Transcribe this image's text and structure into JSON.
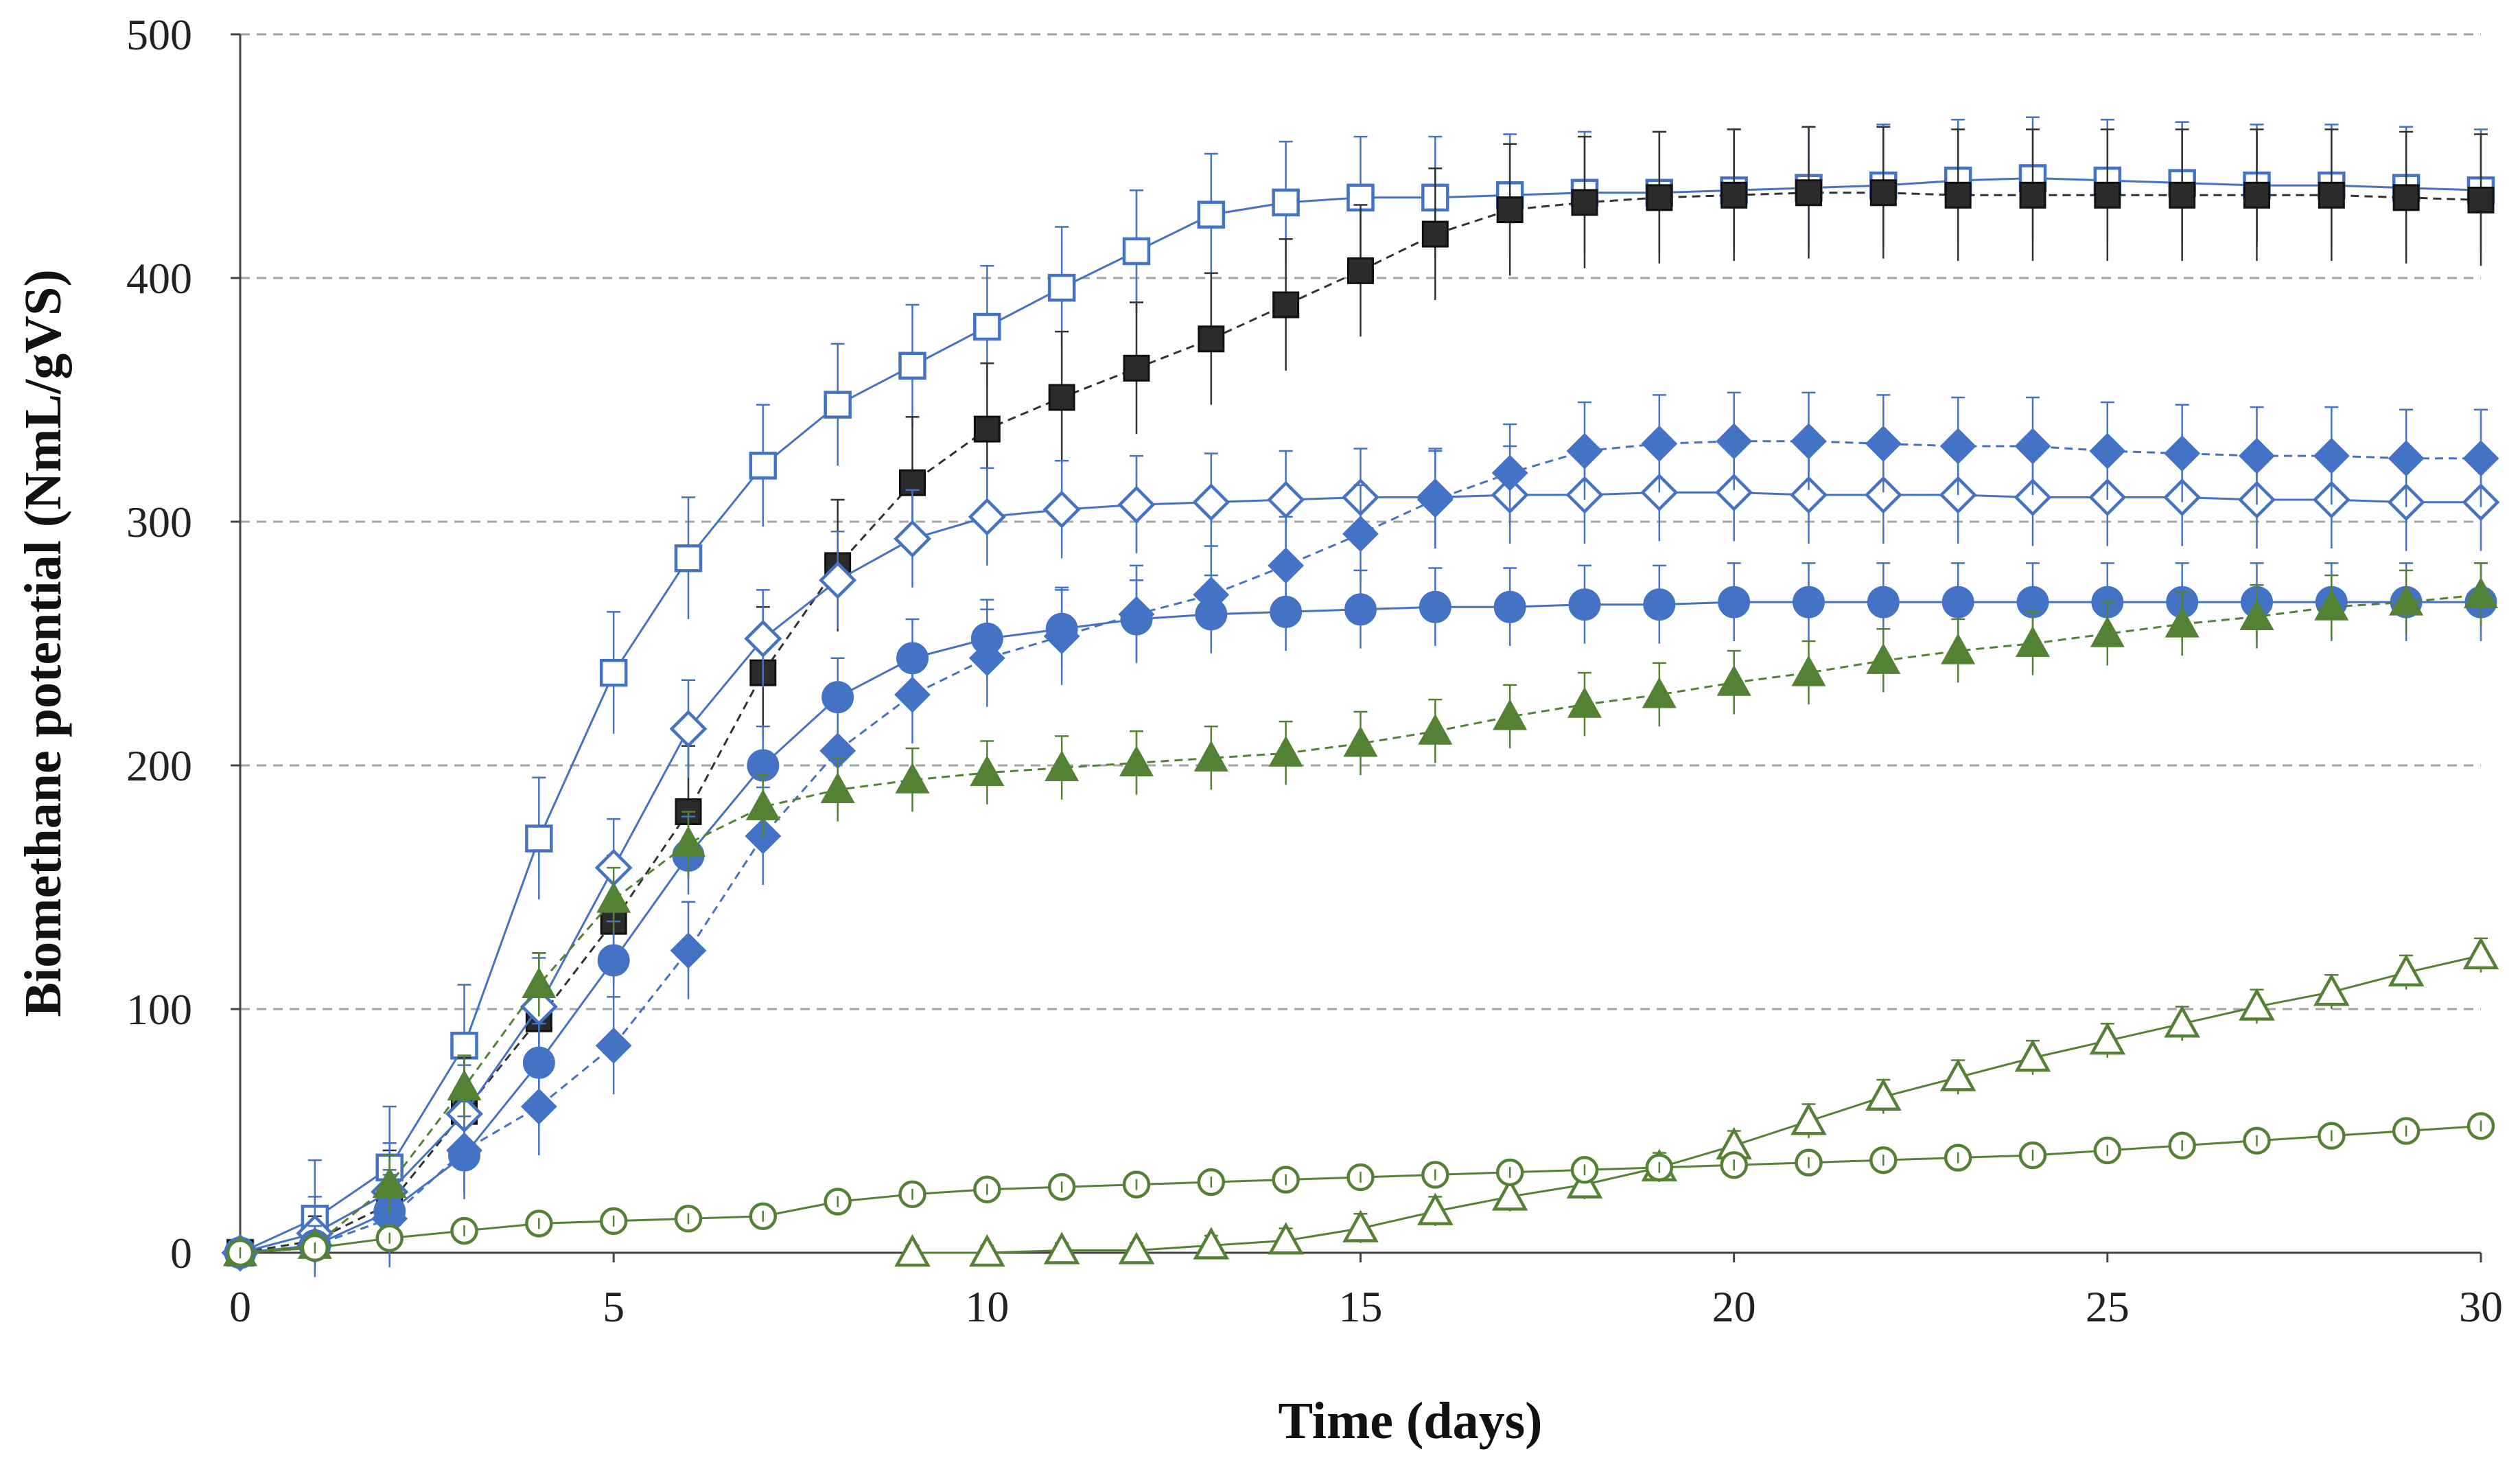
{
  "chart_data": {
    "type": "line",
    "title": "",
    "xlabel": "Time  (days)",
    "ylabel": "Biomethane potential  (NmL/gVS)",
    "xlim": [
      0,
      30
    ],
    "ylim": [
      0,
      500
    ],
    "xticks": [
      "0",
      "5",
      "10",
      "15",
      "20",
      "25",
      "30"
    ],
    "yticks": [
      "0",
      "100",
      "200",
      "300",
      "400",
      "500"
    ],
    "grid": "horizontal dashed",
    "legend": "none",
    "x": [
      0,
      1,
      2,
      3,
      4,
      5,
      6,
      7,
      8,
      9,
      10,
      11,
      12,
      13,
      14,
      15,
      16,
      17,
      18,
      19,
      20,
      21,
      22,
      23,
      24,
      25,
      26,
      27,
      28,
      29,
      30
    ],
    "series": [
      {
        "marker": "open-square",
        "color": "#4472c4",
        "line": "solid",
        "values": [
          0,
          14,
          35,
          85,
          170,
          238,
          285,
          323,
          348,
          364,
          380,
          396,
          411,
          426,
          431,
          433,
          433,
          434,
          435,
          435,
          436,
          437,
          438,
          440,
          441,
          440,
          439,
          438,
          438,
          437,
          436
        ],
        "errors": [
          5,
          24,
          25,
          25,
          25,
          25,
          25,
          25,
          25,
          25,
          25,
          25,
          25,
          25,
          25,
          25,
          25,
          25,
          25,
          25,
          25,
          25,
          25,
          25,
          25,
          25,
          25,
          25,
          25,
          25,
          25
        ]
      },
      {
        "marker": "filled-square",
        "color": "#1f1f1f",
        "line": "dashed",
        "values": [
          0,
          5,
          20,
          58,
          96,
          136,
          181,
          238,
          282,
          316,
          338,
          351,
          363,
          375,
          389,
          403,
          418,
          428,
          431,
          433,
          434,
          435,
          435,
          434,
          434,
          434,
          434,
          434,
          434,
          433,
          432
        ],
        "errors": [
          0,
          10,
          22,
          22,
          27,
          27,
          27,
          27,
          27,
          27,
          27,
          27,
          27,
          27,
          27,
          27,
          27,
          27,
          27,
          27,
          27,
          27,
          27,
          27,
          27,
          27,
          27,
          27,
          27,
          27,
          27
        ]
      },
      {
        "marker": "open-diamond",
        "color": "#4472c4",
        "line": "solid",
        "values": [
          0,
          8,
          25,
          57,
          101,
          158,
          215,
          252,
          276,
          293,
          302,
          305,
          307,
          308,
          309,
          310,
          310,
          311,
          311,
          312,
          312,
          311,
          311,
          311,
          310,
          310,
          310,
          309,
          309,
          308,
          308
        ],
        "errors": [
          0,
          15,
          20,
          20,
          20,
          20,
          20,
          20,
          20,
          20,
          20,
          20,
          20,
          20,
          20,
          20,
          20,
          20,
          20,
          20,
          20,
          20,
          20,
          20,
          20,
          20,
          20,
          20,
          20,
          20,
          20
        ]
      },
      {
        "marker": "filled-diamond",
        "color": "#4472c4",
        "line": "dashed",
        "values": [
          0,
          3,
          14,
          42,
          60,
          85,
          124,
          171,
          206,
          229,
          244,
          253,
          262,
          270,
          282,
          295,
          309,
          320,
          329,
          332,
          333,
          333,
          332,
          331,
          331,
          329,
          328,
          327,
          327,
          326,
          326
        ],
        "errors": [
          0,
          8,
          20,
          20,
          20,
          20,
          20,
          20,
          20,
          20,
          20,
          20,
          20,
          20,
          20,
          20,
          20,
          20,
          20,
          20,
          20,
          20,
          20,
          20,
          20,
          20,
          20,
          20,
          20,
          20,
          20
        ]
      },
      {
        "marker": "filled-circle",
        "color": "#4472c4",
        "line": "solid",
        "values": [
          0,
          3,
          17,
          40,
          78,
          120,
          163,
          200,
          228,
          244,
          252,
          256,
          260,
          262,
          263,
          264,
          265,
          265,
          266,
          266,
          267,
          267,
          267,
          267,
          267,
          267,
          267,
          267,
          267,
          267,
          267
        ],
        "errors": [
          0,
          8,
          15,
          16,
          16,
          16,
          16,
          16,
          16,
          16,
          16,
          16,
          16,
          16,
          16,
          16,
          16,
          16,
          16,
          16,
          16,
          16,
          16,
          16,
          16,
          16,
          16,
          16,
          16,
          16,
          16
        ]
      },
      {
        "marker": "filled-triangle",
        "color": "#548235",
        "line": "dashed",
        "values": [
          0,
          3,
          28,
          68,
          110,
          145,
          168,
          183,
          190,
          194,
          197,
          199,
          201,
          203,
          205,
          209,
          214,
          220,
          225,
          229,
          234,
          238,
          243,
          247,
          250,
          254,
          258,
          261,
          265,
          267,
          270
        ],
        "errors": [
          0,
          5,
          12,
          13,
          13,
          13,
          13,
          13,
          13,
          13,
          13,
          13,
          13,
          13,
          13,
          13,
          13,
          13,
          13,
          13,
          13,
          13,
          13,
          13,
          13,
          13,
          13,
          13,
          13,
          13,
          13
        ]
      },
      {
        "marker": "open-triangle",
        "color": "#548235",
        "line": "solid",
        "values": [
          null,
          null,
          null,
          null,
          null,
          null,
          null,
          null,
          null,
          0,
          0,
          1,
          1,
          3,
          5,
          10,
          17,
          23,
          28,
          35,
          44,
          54,
          64,
          72,
          80,
          87,
          94,
          101,
          107,
          115,
          122
        ],
        "errors": [
          0,
          0,
          0,
          0,
          0,
          0,
          0,
          0,
          0,
          3,
          3,
          3,
          3,
          4,
          5,
          6,
          6,
          6,
          6,
          6,
          6,
          7,
          7,
          7,
          7,
          7,
          7,
          7,
          7,
          7,
          7
        ]
      },
      {
        "marker": "open-circle",
        "color": "#548235",
        "line": "solid",
        "values": [
          0,
          2,
          6,
          9,
          12,
          13,
          14,
          15,
          21,
          24,
          26,
          27,
          28,
          29,
          30,
          31,
          32,
          33,
          34,
          35,
          36,
          37,
          38,
          39,
          40,
          42,
          44,
          46,
          48,
          50,
          52
        ],
        "errors": [
          0,
          2,
          3,
          4,
          4,
          4,
          4,
          4,
          4,
          4,
          4,
          4,
          4,
          4,
          4,
          4,
          4,
          4,
          4,
          4,
          4,
          4,
          4,
          4,
          4,
          4,
          4,
          4,
          4,
          4,
          4
        ]
      }
    ]
  }
}
